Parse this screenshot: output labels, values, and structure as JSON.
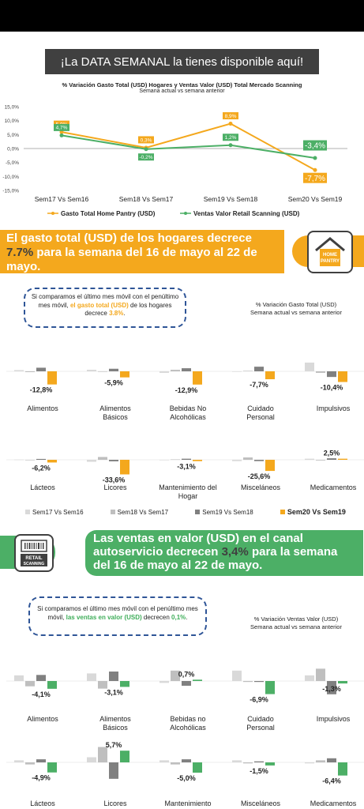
{
  "banner": "¡La DATA SEMANAL la tienes disponible aquí!",
  "chart1": {
    "title": "% Variación Gasto Total (USD) Hogares y Ventas Valor (USD) Total Mercado Scanning",
    "subtitle": "Semana actual vs semana anterior"
  },
  "section1": {
    "banner_pre": "El gasto total (USD) de los hogares decrece ",
    "banner_hl": "7.7%",
    "banner_post": " para la semana del 16 de mayo al 22 de mayo.",
    "logo_line1": "HOME",
    "logo_line2": "PANTRY",
    "note_pre": "Si comparamos el último mes móvil con el penúltimo mes móvil, ",
    "note_hl": "el gasto total (USD)",
    "note_mid": " de los hogares decrece ",
    "note_val": "3.8%",
    "note_end": ".",
    "side_title": "% Variación Gasto Total (USD)",
    "side_sub": "Semana actual vs semana anterior"
  },
  "section2": {
    "banner_pre": "Las ventas en valor (USD) en el canal autoservicio decrecen ",
    "banner_hl": "3,4%",
    "banner_post": " para la semana del 16 de mayo al 22 de mayo.",
    "logo_line1": "RETAIL",
    "logo_line2": "SCANNING",
    "note_pre": "Si comparamos el último mes móvil con el penúltimo mes móvil, ",
    "note_hl": "las ventas en valor (USD)",
    "note_mid": " decrecen ",
    "note_val": "0,1%",
    "note_end": ".",
    "side_title": "% Variación Ventas Valor (USD)",
    "side_sub": "Semana actual vs semana anterior"
  },
  "legend_weeks": [
    "Sem17 Vs Sem16",
    "Sem18 Vs Sem17",
    "Sem19 Vs Sem18",
    "Sem20 Vs Sem19"
  ],
  "colors": {
    "gray1": "#d9d9d9",
    "gray2": "#bfbfbf",
    "gray3": "#808080",
    "orange": "#f4a81d",
    "green": "#4caf66",
    "dark": "#404040",
    "blue": "#2f5597"
  },
  "chart_data": [
    {
      "type": "line",
      "categories": [
        "Sem17 Vs Sem16",
        "Sem18 Vs Sem17",
        "Sem19 Vs Sem18",
        "Sem20 Vs Sem19"
      ],
      "yticks": [
        "15,0%",
        "10,0%",
        "5,0%",
        "0,0%",
        "-5,0%",
        "-10,0%",
        "-15,0%"
      ],
      "ylim": [
        -15,
        15
      ],
      "series": [
        {
          "name": "Gasto Total Home Pantry (USD)",
          "values": [
            5.9,
            0.3,
            8.9,
            -7.7
          ],
          "labels": [
            "5,9%",
            "0,3%",
            "8,9%",
            "-7,7%"
          ],
          "color": "#f4a81d"
        },
        {
          "name": "Ventas Valor Retail Scanning (USD)",
          "values": [
            4.7,
            -0.2,
            1.2,
            -3.4
          ],
          "labels": [
            "4,7%",
            "-0,2%",
            "1,2%",
            "-3,4%"
          ],
          "color": "#4caf66"
        }
      ]
    },
    {
      "type": "bar",
      "series_names": [
        "Sem17 Vs Sem16",
        "Sem18 Vs Sem17",
        "Sem19 Vs Sem18",
        "Sem20 Vs Sem19"
      ],
      "rows": [
        {
          "groups": [
            {
              "name": "Alimentos",
              "values": [
                1.2,
                -0.8,
                3.5,
                -12.8
              ],
              "label": "-12,8%"
            },
            {
              "name": "Alimentos Básicos",
              "values": [
                1.5,
                -0.5,
                2.5,
                -5.9
              ],
              "label": "-5,9%"
            },
            {
              "name": "Bebidas No Alcohólicas",
              "values": [
                -1.5,
                1.5,
                3.0,
                -12.9
              ],
              "label": "-12,9%"
            },
            {
              "name": "Cuidado Personal",
              "values": [
                -0.5,
                0.5,
                4.5,
                -7.7
              ],
              "label": "-7,7%"
            },
            {
              "name": "Impulsivos",
              "values": [
                8.5,
                -1.5,
                -5.5,
                -10.4
              ],
              "label": "-10,4%"
            }
          ]
        },
        {
          "groups": [
            {
              "name": "Lácteos",
              "values": [
                0.5,
                -0.5,
                2.0,
                -6.2
              ],
              "label": "-6,2%"
            },
            {
              "name": "Licores",
              "values": [
                -4.5,
                6.5,
                -3.5,
                -33.6
              ],
              "label": "-33,6%"
            },
            {
              "name": "Mantenimiento del Hogar",
              "values": [
                -1.0,
                1.0,
                2.5,
                -3.1
              ],
              "label": "-3,1%"
            },
            {
              "name": "Misceláneos",
              "values": [
                -3.0,
                5.5,
                -3.0,
                -25.6
              ],
              "label": "-25,6%"
            },
            {
              "name": "Medicamentos",
              "values": [
                2.5,
                -1.5,
                3.5,
                2.5
              ],
              "label": "2,5%"
            }
          ]
        }
      ]
    },
    {
      "type": "bar",
      "series_names": [
        "Sem17 Vs Sem16",
        "Sem18 Vs Sem17",
        "Sem19 Vs Sem18",
        "Sem20 Vs Sem19"
      ],
      "rows": [
        {
          "groups": [
            {
              "name": "Alimentos",
              "values": [
                3.0,
                -2.8,
                3.2,
                -4.1
              ],
              "label": "-4,1%"
            },
            {
              "name": "Alimentos Básicos",
              "values": [
                4.0,
                -4.0,
                5.0,
                -3.1
              ],
              "label": "-3,1%"
            },
            {
              "name": "Bebidas no Alcohólicas",
              "values": [
                -1.0,
                5.5,
                -2.5,
                0.7
              ],
              "label": "0,7%"
            },
            {
              "name": "Cuidado Personal",
              "values": [
                5.5,
                -0.5,
                -0.5,
                -6.9
              ],
              "label": "-6,9%"
            },
            {
              "name": "Impulsivos",
              "values": [
                3.0,
                6.5,
                -7.0,
                -1.3
              ],
              "label": "-1,3%"
            }
          ]
        },
        {
          "groups": [
            {
              "name": "Lácteos",
              "values": [
                1.0,
                -1.0,
                1.5,
                -4.9
              ],
              "label": "-4,9%"
            },
            {
              "name": "Licores",
              "values": [
                2.5,
                7.5,
                -8.0,
                5.7
              ],
              "label": "5,7%"
            },
            {
              "name": "Mantenimiento",
              "values": [
                1.0,
                -1.0,
                1.5,
                -5.0
              ],
              "label": "-5,0%"
            },
            {
              "name": "Misceláneos",
              "values": [
                1.0,
                -0.5,
                0.5,
                -1.5
              ],
              "label": "-1,5%"
            },
            {
              "name": "Medicamentos",
              "values": [
                -0.5,
                1.0,
                2.0,
                -6.4
              ],
              "label": "-6,4%"
            }
          ]
        }
      ]
    }
  ]
}
